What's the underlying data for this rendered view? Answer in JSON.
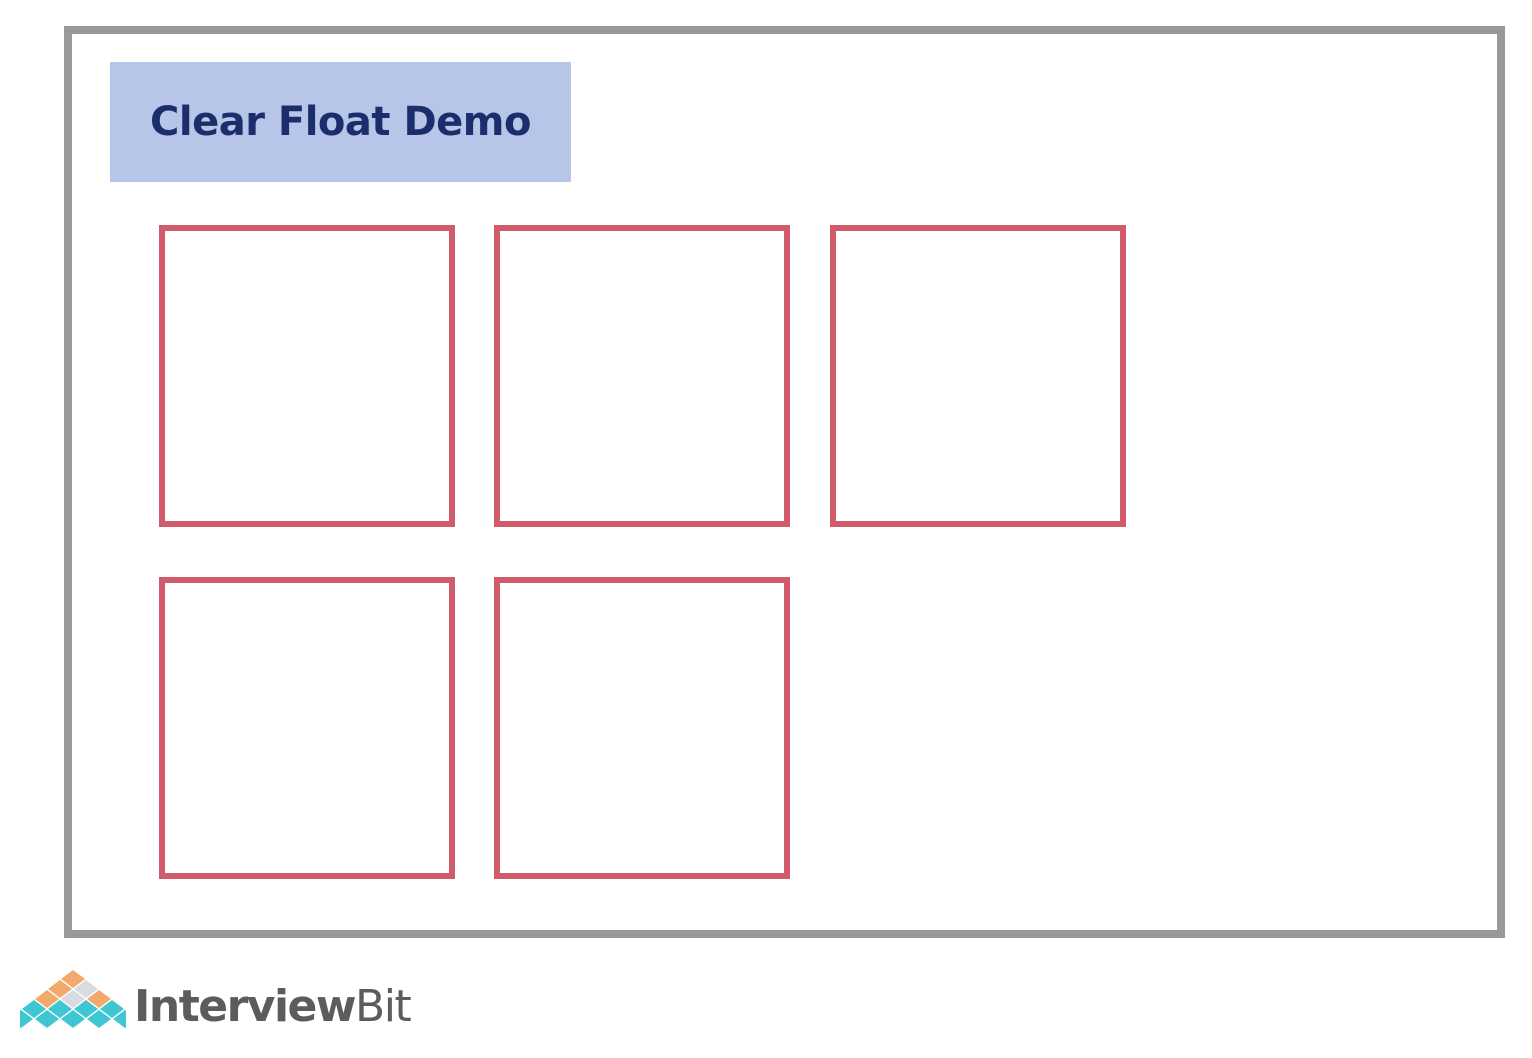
{
  "demo": {
    "title": "Clear Float Demo",
    "box_count": 5
  },
  "colors": {
    "container_border": "#999999",
    "title_background": "#b7c5e8",
    "title_text": "#1b2e6b",
    "box_border": "#d0596a",
    "logo_text": "#5c5c5c",
    "logo_orange": "#f3a96b",
    "logo_teal": "#3ec7d3",
    "logo_light": "#d8dce0"
  },
  "logo": {
    "icon": "interviewbit-diamond-logo-icon",
    "brand_strong": "Interview",
    "brand_light": "Bit"
  }
}
